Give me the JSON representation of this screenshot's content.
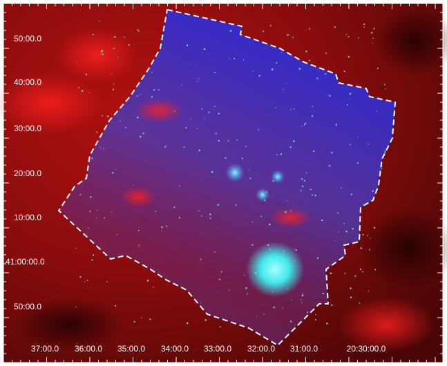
{
  "axes": {
    "y_ticks": [
      "50:00.0",
      "40:00.0",
      "30:00.0",
      "20:00.0",
      "10:00.0",
      "41:00:00.0",
      "50:00.0"
    ],
    "x_ticks": [
      "37:00.0",
      "36:00.0",
      "35:00.0",
      "34:00.0",
      "33:00.0",
      "32:00.0",
      "31:00.0",
      "20:30:00.0"
    ]
  }
}
